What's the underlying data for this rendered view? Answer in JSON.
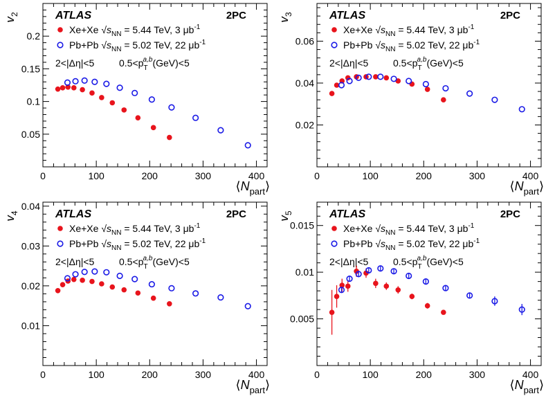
{
  "figure": {
    "xlabel_main": "N",
    "xlabel_sub": "part",
    "common": {
      "experiment": "ATLAS",
      "method": "2PC",
      "cut_eta": "2<|Δη|<5",
      "cut_pt_prefix": "0.5<p",
      "cut_pt_sub": "T",
      "cut_pt_sup": "a,b",
      "cut_pt_suffix": "(GeV)<5",
      "legend": [
        {
          "system": "Xe+Xe",
          "energy_label": "s",
          "energy_sub": "NN",
          "energy_value": "= 5.44 TeV, 3 μb",
          "lumi_sup": "-1",
          "color": "#e8141c",
          "marker": "filled-circle"
        },
        {
          "system": "Pb+Pb",
          "energy_label": "s",
          "energy_sub": "NN",
          "energy_value": "= 5.02 TeV, 22 μb",
          "lumi_sup": "-1",
          "color": "#1a1ae6",
          "marker": "open-circle"
        }
      ]
    }
  },
  "chart_data": [
    {
      "type": "scatter",
      "ylabel": "v",
      "ylabel_sub": "2",
      "xlim": [
        0,
        420
      ],
      "ylim": [
        0,
        0.25
      ],
      "xticks": [
        0,
        100,
        200,
        300,
        400
      ],
      "xtick_labels": [
        "0",
        "100",
        "200",
        "300",
        "400"
      ],
      "yticks": [
        0.05,
        0.1,
        0.15,
        0.2
      ],
      "ytick_labels": [
        "0.05",
        "0.1",
        "0.15",
        "0.2"
      ],
      "series": [
        {
          "name": "Xe+Xe",
          "x": [
            28,
            37,
            47,
            58,
            74,
            92,
            110,
            130,
            152,
            178,
            207,
            237
          ],
          "y": [
            0.119,
            0.121,
            0.122,
            0.121,
            0.118,
            0.113,
            0.106,
            0.098,
            0.087,
            0.075,
            0.06,
            0.045
          ],
          "err": []
        },
        {
          "name": "Pb+Pb",
          "x": [
            46,
            61,
            78,
            97,
            119,
            144,
            172,
            204,
            241,
            286,
            333,
            384
          ],
          "y": [
            0.129,
            0.131,
            0.132,
            0.13,
            0.127,
            0.121,
            0.113,
            0.103,
            0.091,
            0.075,
            0.056,
            0.033
          ],
          "err": []
        }
      ]
    },
    {
      "type": "scatter",
      "ylabel": "v",
      "ylabel_sub": "3",
      "xlim": [
        0,
        420
      ],
      "ylim": [
        0,
        0.078
      ],
      "xticks": [
        0,
        100,
        200,
        300,
        400
      ],
      "xtick_labels": [
        "0",
        "100",
        "200",
        "300",
        "400"
      ],
      "yticks": [
        0.02,
        0.04,
        0.06
      ],
      "ytick_labels": [
        "0.02",
        "0.04",
        "0.06"
      ],
      "series": [
        {
          "name": "Xe+Xe",
          "x": [
            28,
            37,
            47,
            58,
            74,
            92,
            110,
            130,
            152,
            178,
            207,
            237
          ],
          "y": [
            0.035,
            0.039,
            0.041,
            0.0425,
            0.043,
            0.043,
            0.043,
            0.0425,
            0.041,
            0.0395,
            0.037,
            0.032
          ],
          "err": []
        },
        {
          "name": "Pb+Pb",
          "x": [
            46,
            61,
            78,
            97,
            119,
            144,
            172,
            204,
            241,
            286,
            333,
            384
          ],
          "y": [
            0.039,
            0.041,
            0.0425,
            0.043,
            0.043,
            0.042,
            0.041,
            0.0395,
            0.0375,
            0.035,
            0.032,
            0.0275
          ],
          "err": []
        }
      ]
    },
    {
      "type": "scatter",
      "ylabel": "v",
      "ylabel_sub": "4",
      "xlim": [
        0,
        420
      ],
      "ylim": [
        0,
        0.041
      ],
      "xticks": [
        0,
        100,
        200,
        300,
        400
      ],
      "xtick_labels": [
        "0",
        "100",
        "200",
        "300",
        "400"
      ],
      "yticks": [
        0.01,
        0.02,
        0.03,
        0.04
      ],
      "ytick_labels": [
        "0.01",
        "0.02",
        "0.03",
        "0.04"
      ],
      "series": [
        {
          "name": "Xe+Xe",
          "x": [
            28,
            37,
            47,
            58,
            74,
            92,
            110,
            130,
            152,
            178,
            207,
            237
          ],
          "y": [
            0.0188,
            0.0203,
            0.0212,
            0.0216,
            0.0214,
            0.0211,
            0.0205,
            0.0197,
            0.019,
            0.0182,
            0.0169,
            0.0155
          ],
          "err": []
        },
        {
          "name": "Pb+Pb",
          "x": [
            46,
            61,
            78,
            97,
            119,
            144,
            172,
            204,
            241,
            286,
            333,
            384
          ],
          "y": [
            0.0219,
            0.0229,
            0.0235,
            0.0236,
            0.0234,
            0.0225,
            0.0217,
            0.0204,
            0.0194,
            0.0181,
            0.0171,
            0.0149
          ],
          "err": []
        }
      ]
    },
    {
      "type": "scatter",
      "ylabel": "v",
      "ylabel_sub": "5",
      "xlim": [
        0,
        420
      ],
      "ylim": [
        0,
        0.0175
      ],
      "xticks": [
        0,
        100,
        200,
        300,
        400
      ],
      "xtick_labels": [
        "0",
        "100",
        "200",
        "300",
        "400"
      ],
      "yticks": [
        0.005,
        0.01,
        0.015
      ],
      "ytick_labels": [
        "0.005",
        "0.01",
        "0.015"
      ],
      "series": [
        {
          "name": "Xe+Xe",
          "x": [
            28,
            37,
            47,
            58,
            74,
            92,
            110,
            130,
            152,
            178,
            207,
            237
          ],
          "y": [
            0.0057,
            0.0074,
            0.0086,
            0.0085,
            0.0101,
            0.0099,
            0.0088,
            0.0085,
            0.0081,
            0.0074,
            0.0064,
            0.0057
          ],
          "err": [
            0.0024,
            0.0012,
            0.0007,
            0.0006,
            0.0006,
            0.0005,
            0.0005,
            0.0004,
            0.0004,
            0.0003,
            0.0003,
            0.0002
          ]
        },
        {
          "name": "Pb+Pb",
          "x": [
            46,
            61,
            78,
            97,
            119,
            144,
            172,
            204,
            241,
            286,
            333,
            384
          ],
          "y": [
            0.0081,
            0.0093,
            0.0098,
            0.0102,
            0.0104,
            0.0101,
            0.0096,
            0.009,
            0.0083,
            0.0075,
            0.0069,
            0.006
          ],
          "err": [
            0.0003,
            0.0003,
            0.0003,
            0.0003,
            0.0003,
            0.0003,
            0.0003,
            0.0003,
            0.0003,
            0.0003,
            0.0005,
            0.0006
          ]
        }
      ]
    }
  ]
}
